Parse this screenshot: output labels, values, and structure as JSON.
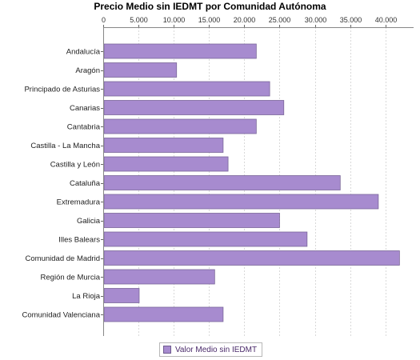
{
  "chart_data": {
    "type": "bar",
    "orientation": "horizontal",
    "title": "Precio Medio sin IEDMT por Comunidad Autónoma",
    "categories": [
      "Andalucía",
      "Aragón",
      "Principado de Asturias",
      "Canarias",
      "Cantabria",
      "Castilla - La Mancha",
      "Castilla y León",
      "Cataluña",
      "Extremadura",
      "Galicia",
      "Illes Balears",
      "Comunidad de Madrid",
      "Región de Murcia",
      "La Rioja",
      "Comunidad Valenciana"
    ],
    "series": [
      {
        "name": "Valor Medio sin IEDMT",
        "color": "#a78bcf",
        "values": [
          21700,
          10400,
          23600,
          25600,
          21700,
          17000,
          17700,
          33600,
          39000,
          25000,
          28900,
          42000,
          15800,
          5100,
          17000
        ]
      }
    ],
    "xlim": [
      0,
      44000
    ],
    "xticks": [
      "0",
      "5.000",
      "10.000",
      "15.000",
      "20.000",
      "25.000",
      "30.000",
      "35.000",
      "40.000"
    ],
    "xtick_values": [
      0,
      5000,
      10000,
      15000,
      20000,
      25000,
      30000,
      35000,
      40000
    ],
    "axis_position": "top",
    "grid": true,
    "legend_position": "bottom"
  }
}
